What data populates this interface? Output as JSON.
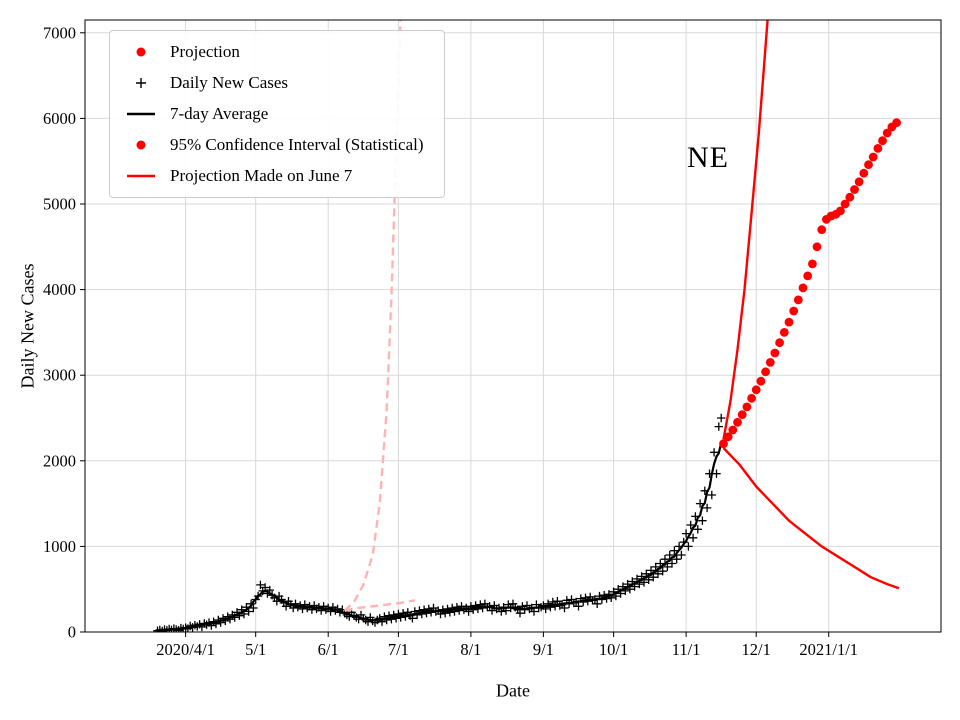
{
  "figure": {
    "background": "#ffffff"
  },
  "legend": {
    "items": [
      {
        "label": "Projection",
        "marker": "dot",
        "color": "#ff0000"
      },
      {
        "label": "Daily New Cases",
        "marker": "plus",
        "color": "#000000"
      },
      {
        "label": "7-day Average",
        "marker": "line",
        "color": "#000000"
      },
      {
        "label": "95% Confidence Interval (Statistical)",
        "marker": "dot",
        "color": "#ff0000"
      },
      {
        "label": "Projection Made on June 7",
        "marker": "line",
        "color": "#ff0000"
      }
    ]
  },
  "chart_data": {
    "type": "line",
    "title": "NE",
    "xlabel": "Date",
    "ylabel": "Daily New Cases",
    "ylim": [
      0,
      7150
    ],
    "xlim_days": [
      48,
      414
    ],
    "grid": true,
    "grid_color": "#d9d9d9",
    "y_ticks": [
      0,
      1000,
      2000,
      3000,
      4000,
      5000,
      6000,
      7000
    ],
    "x_ticks": [
      {
        "day": 91,
        "label": "2020/4/1"
      },
      {
        "day": 121,
        "label": "5/1"
      },
      {
        "day": 152,
        "label": "6/1"
      },
      {
        "day": 182,
        "label": "7/1"
      },
      {
        "day": 213,
        "label": "8/1"
      },
      {
        "day": 244,
        "label": "9/1"
      },
      {
        "day": 274,
        "label": "10/1"
      },
      {
        "day": 305,
        "label": "11/1"
      },
      {
        "day": 335,
        "label": "12/1"
      },
      {
        "day": 366,
        "label": "2021/1/1"
      }
    ],
    "day_numbering_note": "days since 2020-01-01 (0 = 2020/1/1)",
    "series": [
      {
        "name": "Daily New Cases",
        "type": "scatter-plus",
        "color": "#000000",
        "start_day": 79,
        "values": [
          15,
          25,
          10,
          30,
          20,
          35,
          25,
          40,
          30,
          20,
          45,
          35,
          50,
          40,
          70,
          55,
          80,
          65,
          90,
          60,
          100,
          85,
          110,
          75,
          120,
          95,
          140,
          110,
          160,
          130,
          180,
          150,
          200,
          170,
          230,
          190,
          260,
          210,
          290,
          240,
          330,
          280,
          380,
          420,
          550,
          480,
          520,
          450,
          490,
          430,
          400,
          360,
          420,
          380,
          340,
          300,
          360,
          320,
          280,
          330,
          290,
          310,
          270,
          320,
          280,
          300,
          260,
          310,
          270,
          290,
          250,
          300,
          260,
          280,
          240,
          290,
          250,
          270,
          230,
          260,
          220,
          200,
          180,
          230,
          190,
          170,
          150,
          200,
          160,
          140,
          120,
          170,
          130,
          110,
          140,
          160,
          120,
          180,
          140,
          190,
          150,
          200,
          160,
          210,
          170,
          220,
          180,
          230,
          190,
          160,
          240,
          200,
          250,
          210,
          260,
          220,
          270,
          230,
          280,
          240,
          250,
          210,
          260,
          220,
          270,
          230,
          280,
          240,
          290,
          250,
          300,
          260,
          280,
          240,
          300,
          260,
          310,
          270,
          320,
          280,
          330,
          290,
          300,
          250,
          310,
          270,
          280,
          240,
          290,
          250,
          320,
          280,
          330,
          290,
          260,
          220,
          300,
          260,
          310,
          270,
          280,
          240,
          320,
          280,
          290,
          310,
          270,
          330,
          290,
          350,
          300,
          360,
          310,
          320,
          280,
          370,
          330,
          380,
          340,
          350,
          300,
          390,
          350,
          400,
          360,
          410,
          370,
          380,
          330,
          420,
          380,
          430,
          390,
          440,
          400,
          470,
          420,
          500,
          450,
          530,
          480,
          560,
          500,
          590,
          530,
          620,
          560,
          650,
          580,
          680,
          610,
          720,
          640,
          760,
          680,
          800,
          710,
          850,
          760,
          900,
          800,
          950,
          850,
          1000,
          900,
          1050,
          1150,
          1000,
          1250,
          1100,
          1350,
          1200,
          1500,
          1300,
          1650,
          1450,
          1850,
          1600,
          2100,
          1850,
          2400,
          2500
        ]
      },
      {
        "name": "7-day Average",
        "type": "moving-average-line",
        "color": "#000000",
        "window": 7,
        "source": "Daily New Cases"
      },
      {
        "name": "Projection",
        "type": "dots",
        "color": "#ff0000",
        "start_day": 321,
        "step": 2,
        "values": [
          2200,
          2280,
          2360,
          2450,
          2540,
          2630,
          2730,
          2830,
          2930,
          3040,
          3150,
          3260,
          3380,
          3500,
          3620,
          3750,
          3880,
          4020,
          4160,
          4300,
          4500,
          4700,
          4820,
          4860,
          4880,
          4920,
          5000,
          5080,
          5170,
          5260,
          5360,
          5460,
          5550,
          5650,
          5740,
          5830,
          5900,
          5950
        ]
      },
      {
        "name": "95% CI Upper",
        "type": "line",
        "color": "#ff0000",
        "points": [
          [
            321,
            2250
          ],
          [
            324,
            2700
          ],
          [
            327,
            3300
          ],
          [
            330,
            4000
          ],
          [
            333,
            4900
          ],
          [
            336,
            5800
          ],
          [
            338,
            6500
          ],
          [
            340,
            7200
          ]
        ]
      },
      {
        "name": "95% CI Lower",
        "type": "line",
        "color": "#ff0000",
        "points": [
          [
            321,
            2150
          ],
          [
            328,
            1950
          ],
          [
            335,
            1700
          ],
          [
            342,
            1500
          ],
          [
            349,
            1300
          ],
          [
            356,
            1150
          ],
          [
            363,
            1000
          ],
          [
            370,
            880
          ],
          [
            377,
            760
          ],
          [
            384,
            640
          ],
          [
            391,
            560
          ],
          [
            396,
            510
          ]
        ]
      },
      {
        "name": "June 7 Projection Upper",
        "type": "dashed-line",
        "color": "#ffb3b3",
        "points": [
          [
            159,
            250
          ],
          [
            163,
            350
          ],
          [
            167,
            550
          ],
          [
            171,
            900
          ],
          [
            174,
            1500
          ],
          [
            177,
            2600
          ],
          [
            179,
            3900
          ],
          [
            181,
            5600
          ],
          [
            183,
            7200
          ]
        ]
      },
      {
        "name": "June 7 Projection Lower",
        "type": "dashed-line",
        "color": "#ffb3b3",
        "points": [
          [
            159,
            250
          ],
          [
            165,
            280
          ],
          [
            171,
            300
          ],
          [
            177,
            320
          ],
          [
            183,
            340
          ],
          [
            189,
            370
          ]
        ]
      }
    ]
  }
}
